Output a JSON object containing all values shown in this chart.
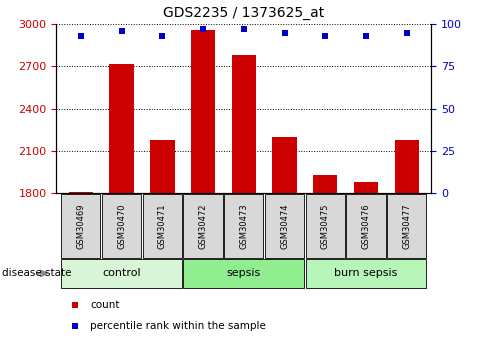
{
  "title": "GDS2235 / 1373625_at",
  "samples": [
    "GSM30469",
    "GSM30470",
    "GSM30471",
    "GSM30472",
    "GSM30473",
    "GSM30474",
    "GSM30475",
    "GSM30476",
    "GSM30477"
  ],
  "counts": [
    1810,
    2720,
    2180,
    2960,
    2780,
    2200,
    1930,
    1880,
    2180
  ],
  "percentile_ranks": [
    93,
    96,
    93,
    97,
    97,
    95,
    93,
    93,
    95
  ],
  "ylim_left": [
    1800,
    3000
  ],
  "ylim_right": [
    0,
    100
  ],
  "yticks_left": [
    1800,
    2100,
    2400,
    2700,
    3000
  ],
  "yticks_right": [
    0,
    25,
    50,
    75,
    100
  ],
  "groups": [
    {
      "label": "control",
      "start": 0,
      "end": 3,
      "color": "#d8f5d8"
    },
    {
      "label": "sepsis",
      "start": 3,
      "end": 6,
      "color": "#90ee90"
    },
    {
      "label": "burn sepsis",
      "start": 6,
      "end": 9,
      "color": "#b8f5b8"
    }
  ],
  "bar_color": "#cc0000",
  "marker_color": "#0000cc",
  "tick_label_color_left": "#cc0000",
  "tick_label_color_right": "#0000cc",
  "bar_width": 0.6,
  "sample_box_color": "#d8d8d8",
  "disease_state_label": "disease state",
  "legend_items": [
    {
      "label": "count",
      "color": "#cc0000"
    },
    {
      "label": "percentile rank within the sample",
      "color": "#0000cc"
    }
  ]
}
